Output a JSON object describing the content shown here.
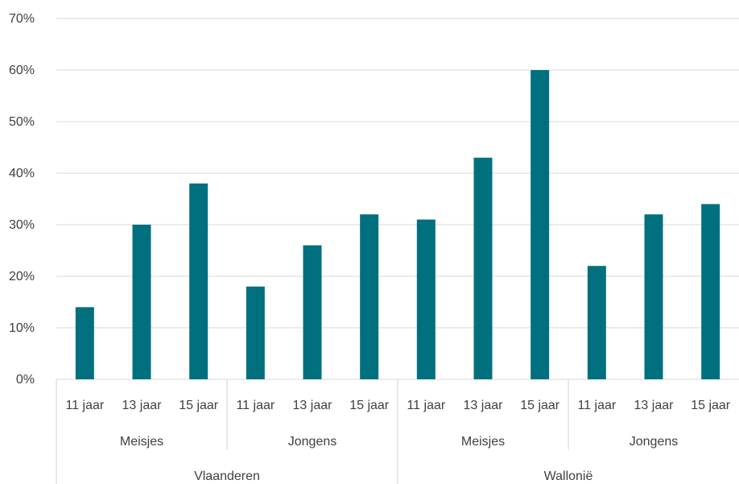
{
  "chart_data": {
    "type": "bar",
    "title": "",
    "xlabel": "",
    "ylabel": "",
    "ylim": [
      0,
      70
    ],
    "y_ticks": [
      "0%",
      "10%",
      "20%",
      "30%",
      "40%",
      "50%",
      "60%",
      "70%"
    ],
    "y_tick_values": [
      0,
      10,
      20,
      30,
      40,
      50,
      60,
      70
    ],
    "grid": true,
    "legend": "none",
    "bar_color": "#00707f",
    "categories": [
      "11 jaar",
      "13 jaar",
      "15 jaar",
      "11 jaar",
      "13 jaar",
      "15 jaar",
      "11 jaar",
      "13 jaar",
      "15 jaar",
      "11 jaar",
      "13 jaar",
      "15 jaar"
    ],
    "values": [
      14,
      30,
      38,
      18,
      26,
      32,
      31,
      43,
      60,
      22,
      32,
      34
    ],
    "groups_level2": [
      {
        "label": "Meisjes",
        "span": 3
      },
      {
        "label": "Jongens",
        "span": 3
      },
      {
        "label": "Meisjes",
        "span": 3
      },
      {
        "label": "Jongens",
        "span": 3
      }
    ],
    "groups_level1": [
      {
        "label": "Vlaanderen",
        "span": 6
      },
      {
        "label": "Wallonië",
        "span": 6
      }
    ]
  }
}
